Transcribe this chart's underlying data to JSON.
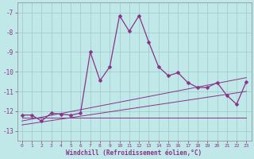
{
  "background_color": "#c0e8e8",
  "grid_color": "#a0c8c8",
  "line_color": "#883388",
  "xlabel": "Windchill (Refroidissement éolien,°C)",
  "xlim": [
    -0.5,
    23.5
  ],
  "ylim": [
    -13.5,
    -6.5
  ],
  "yticks": [
    -13,
    -12,
    -11,
    -10,
    -9,
    -8,
    -7
  ],
  "xticks": [
    0,
    1,
    2,
    3,
    4,
    5,
    6,
    7,
    8,
    9,
    10,
    11,
    12,
    13,
    14,
    15,
    16,
    17,
    18,
    19,
    20,
    21,
    22,
    23
  ],
  "main_x": [
    0,
    1,
    2,
    3,
    4,
    5,
    6,
    7,
    8,
    9,
    10,
    11,
    12,
    13,
    14,
    15,
    16,
    17,
    18,
    19,
    20,
    21,
    22,
    23
  ],
  "main_y": [
    -12.2,
    -12.2,
    -12.5,
    -12.1,
    -12.15,
    -12.2,
    -12.1,
    -9.0,
    -10.45,
    -9.75,
    -7.15,
    -7.95,
    -7.15,
    -8.5,
    -9.75,
    -10.2,
    -10.05,
    -10.55,
    -10.8,
    -10.8,
    -10.55,
    -11.2,
    -11.65,
    -10.5
  ],
  "line1_x": [
    0,
    23
  ],
  "line1_y": [
    -12.35,
    -12.35
  ],
  "line2_x": [
    0,
    23
  ],
  "line2_y": [
    -12.7,
    -11.0
  ],
  "line3_x": [
    0,
    23
  ],
  "line3_y": [
    -12.5,
    -10.3
  ],
  "lw_main": 0.9,
  "lw_ref": 0.7,
  "ms": 2.5
}
